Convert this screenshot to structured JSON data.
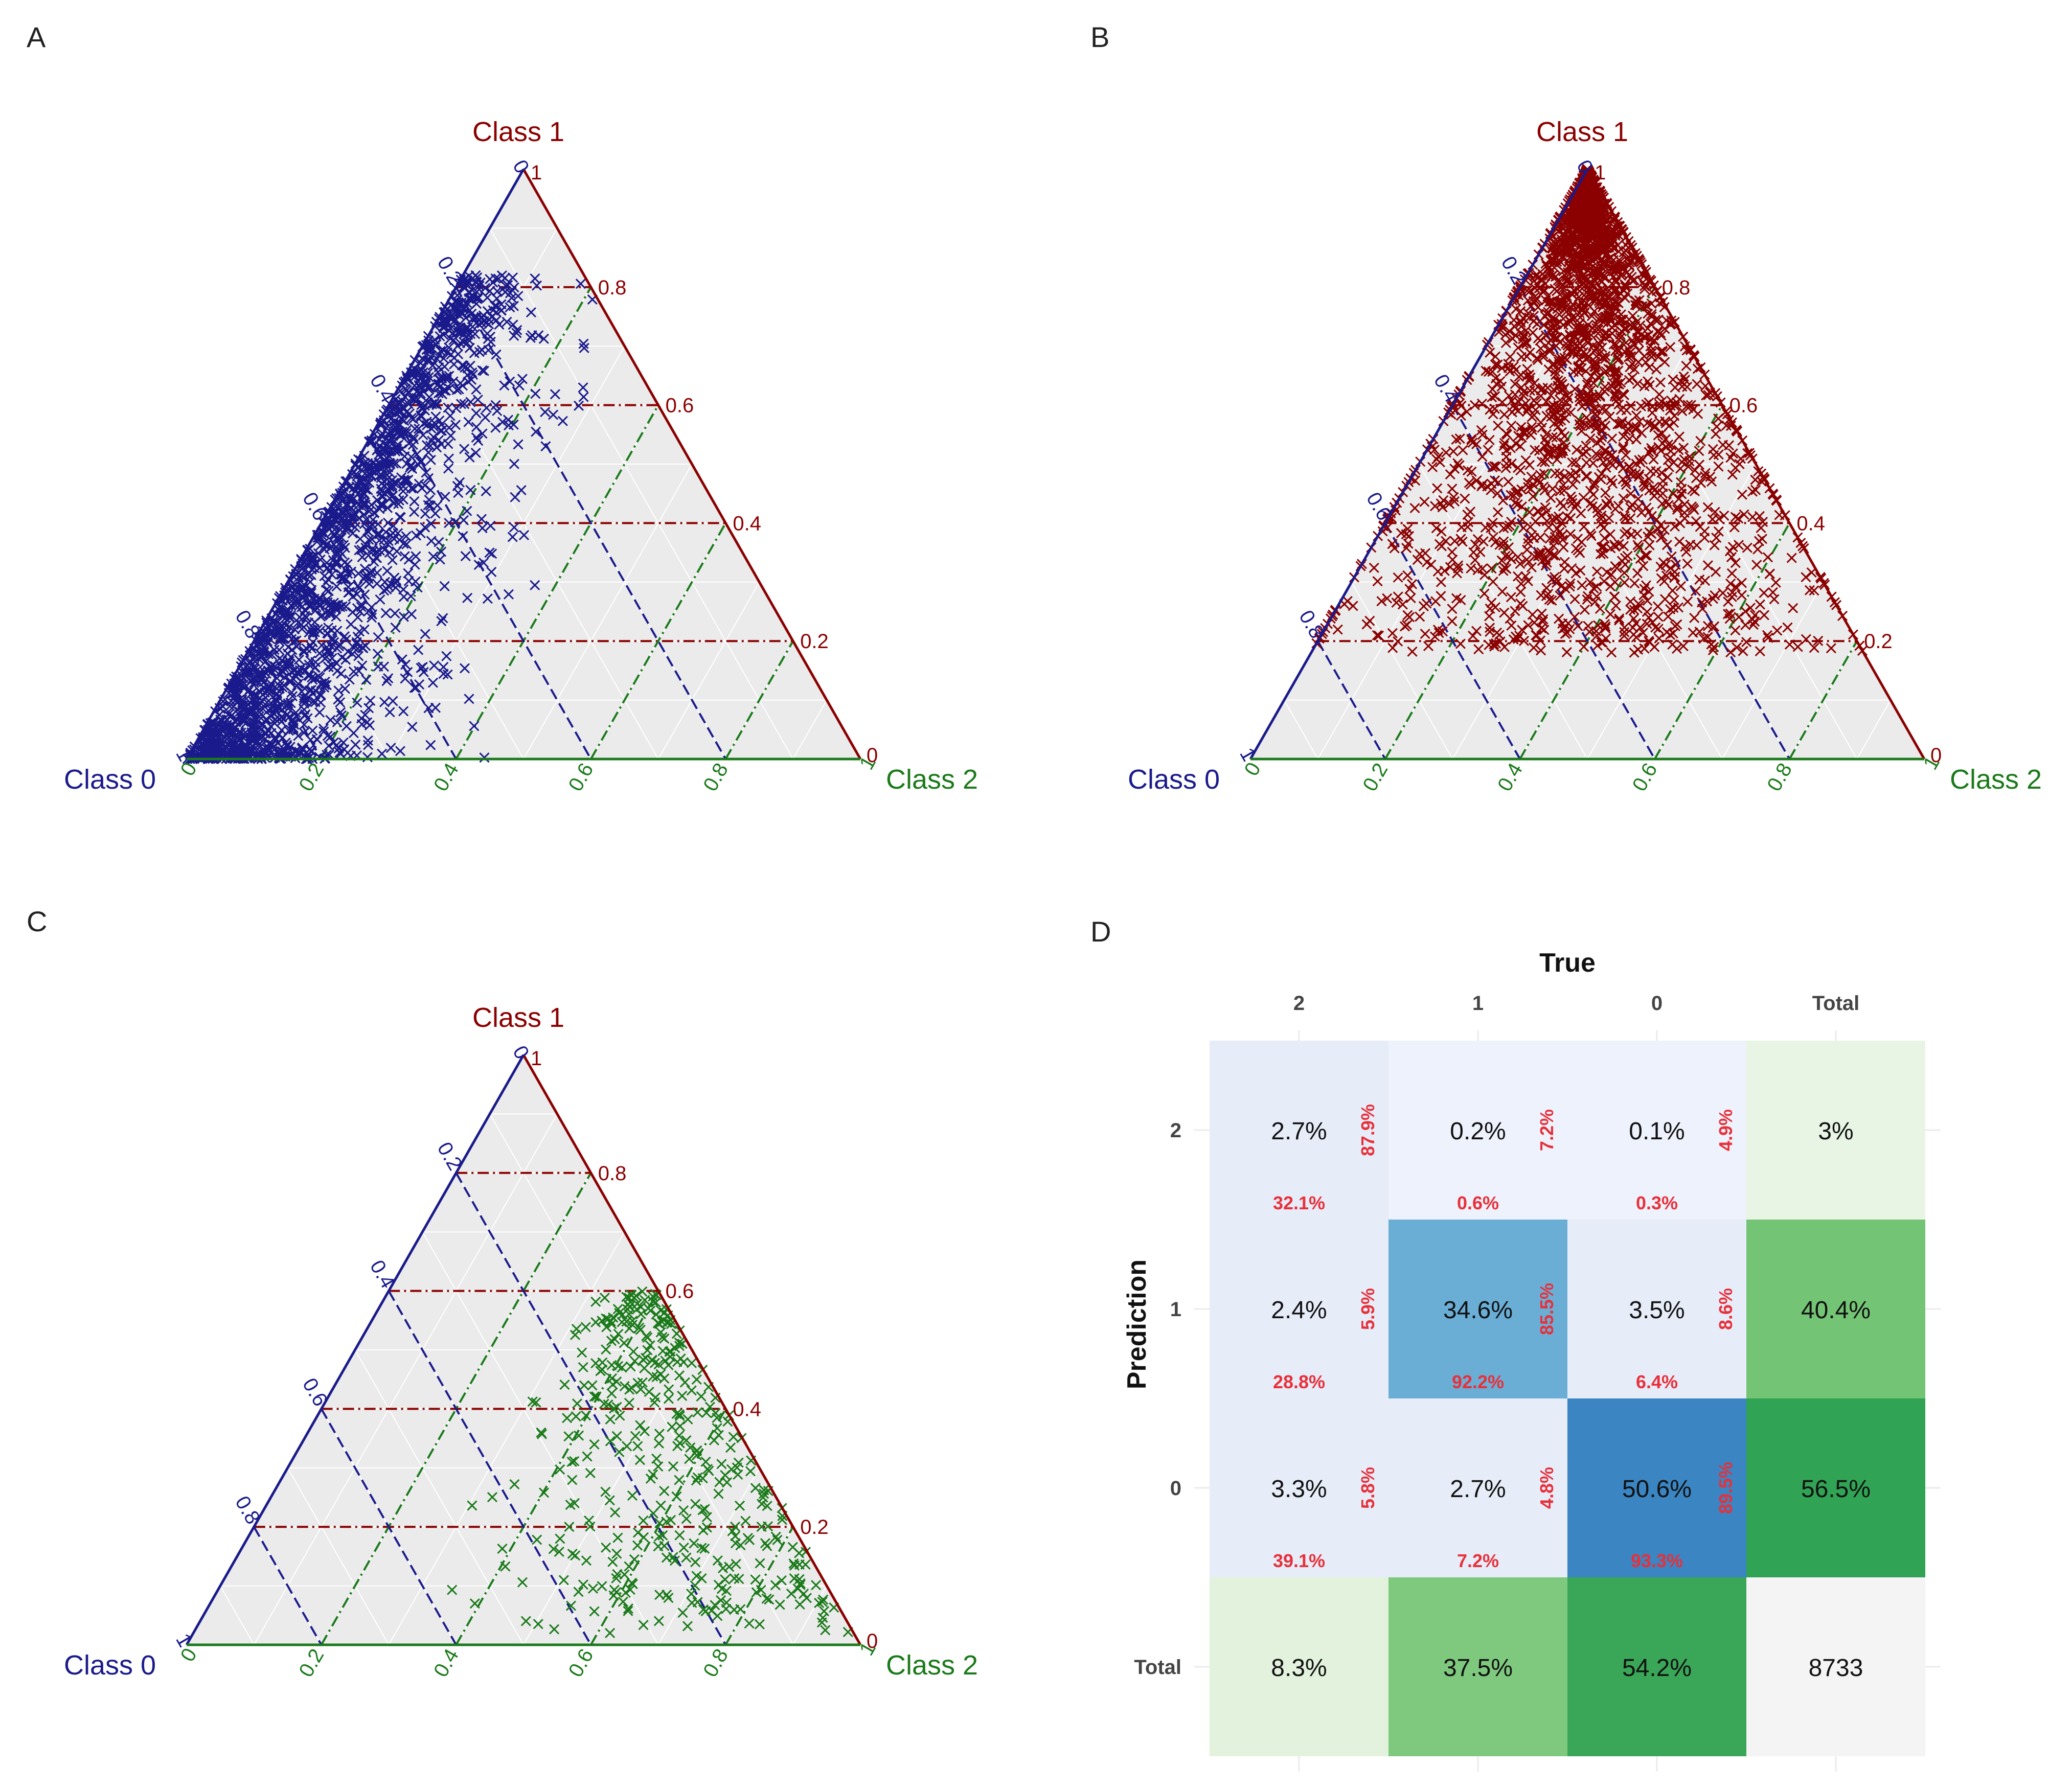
{
  "panels": {
    "a": {
      "letter": "A"
    },
    "b": {
      "letter": "B"
    },
    "c": {
      "letter": "C"
    },
    "d": {
      "letter": "D"
    }
  },
  "colors": {
    "class0": "#1a1a8c",
    "class1": "#8b0000",
    "class2": "#1a7a1a",
    "triangle_bg": "#ebebeb",
    "grid": "#ffffff",
    "cm_pct": "#e8303a",
    "cm_text": "#111111"
  },
  "ternary_common": {
    "class0_label": "Class 0",
    "class1_label": "Class 1",
    "class2_label": "Class 2",
    "ticks": [
      "0",
      "0.2",
      "0.4",
      "0.6",
      "0.8",
      "1"
    ],
    "corner_class1_top": "1",
    "corner_class2_right": "0",
    "corner_class0_left": "1"
  },
  "chart_data": [
    {
      "type": "scatter",
      "name": "A",
      "kind": "ternary",
      "marker": "x",
      "color": "#1a1a8c",
      "axes": [
        "Class 0",
        "Class 1",
        "Class 2"
      ],
      "points_desc": "predictions for true class 0; concentrated toward Class 0 vertex",
      "sample_points": [
        [
          0.9,
          0.05,
          0.05
        ],
        [
          0.8,
          0.15,
          0.05
        ],
        [
          0.7,
          0.25,
          0.05
        ],
        [
          0.6,
          0.35,
          0.05
        ],
        [
          0.5,
          0.45,
          0.05
        ],
        [
          0.4,
          0.55,
          0.05
        ],
        [
          0.3,
          0.65,
          0.05
        ],
        [
          0.2,
          0.78,
          0.02
        ],
        [
          0.75,
          0.1,
          0.15
        ],
        [
          0.65,
          0.2,
          0.15
        ],
        [
          0.55,
          0.3,
          0.15
        ],
        [
          0.45,
          0.4,
          0.15
        ],
        [
          0.35,
          0.5,
          0.15
        ],
        [
          0.6,
          0.1,
          0.3
        ],
        [
          0.5,
          0.2,
          0.3
        ],
        [
          0.85,
          0.02,
          0.13
        ],
        [
          0.7,
          0.02,
          0.28
        ],
        [
          0.55,
          0.05,
          0.4
        ]
      ],
      "guide_lines": {
        "class1": [
          0.2,
          0.4,
          0.6,
          0.8
        ],
        "class2": [
          0.2,
          0.4,
          0.6,
          0.8
        ],
        "class0": [
          0.2,
          0.4,
          0.6,
          0.8
        ]
      }
    },
    {
      "type": "scatter",
      "name": "B",
      "kind": "ternary",
      "marker": "x",
      "color": "#8b0000",
      "axes": [
        "Class 0",
        "Class 1",
        "Class 2"
      ],
      "points_desc": "predictions for true class 1; concentrated toward Class 1 vertex",
      "sample_points": [
        [
          0.02,
          0.95,
          0.03
        ],
        [
          0.05,
          0.9,
          0.05
        ],
        [
          0.1,
          0.85,
          0.05
        ],
        [
          0.05,
          0.8,
          0.15
        ],
        [
          0.15,
          0.75,
          0.1
        ],
        [
          0.1,
          0.7,
          0.2
        ],
        [
          0.2,
          0.65,
          0.15
        ],
        [
          0.25,
          0.6,
          0.15
        ],
        [
          0.3,
          0.55,
          0.15
        ],
        [
          0.15,
          0.55,
          0.3
        ],
        [
          0.35,
          0.45,
          0.2
        ],
        [
          0.4,
          0.4,
          0.2
        ],
        [
          0.5,
          0.3,
          0.2
        ],
        [
          0.6,
          0.25,
          0.15
        ],
        [
          0.7,
          0.2,
          0.1
        ],
        [
          0.3,
          0.3,
          0.4
        ],
        [
          0.2,
          0.35,
          0.45
        ],
        [
          0.1,
          0.5,
          0.4
        ]
      ],
      "guide_lines": {
        "class1": [
          0.2,
          0.4,
          0.6,
          0.8
        ],
        "class2": [
          0.2,
          0.4,
          0.6,
          0.8
        ],
        "class0": [
          0.2,
          0.4,
          0.6,
          0.8
        ]
      }
    },
    {
      "type": "scatter",
      "name": "C",
      "kind": "ternary",
      "marker": "x",
      "color": "#1a7a1a",
      "axes": [
        "Class 0",
        "Class 1",
        "Class 2"
      ],
      "points_desc": "predictions for true class 2; concentrated toward Class 2 side",
      "sample_points": [
        [
          0.05,
          0.6,
          0.35
        ],
        [
          0.05,
          0.55,
          0.4
        ],
        [
          0.1,
          0.5,
          0.4
        ],
        [
          0.05,
          0.45,
          0.5
        ],
        [
          0.15,
          0.4,
          0.45
        ],
        [
          0.1,
          0.35,
          0.55
        ],
        [
          0.2,
          0.3,
          0.5
        ],
        [
          0.05,
          0.3,
          0.65
        ],
        [
          0.25,
          0.25,
          0.5
        ],
        [
          0.15,
          0.2,
          0.65
        ],
        [
          0.3,
          0.15,
          0.55
        ],
        [
          0.05,
          0.15,
          0.8
        ],
        [
          0.35,
          0.1,
          0.55
        ],
        [
          0.2,
          0.1,
          0.7
        ],
        [
          0.4,
          0.05,
          0.55
        ],
        [
          0.25,
          0.05,
          0.7
        ],
        [
          0.1,
          0.05,
          0.85
        ],
        [
          0.5,
          0.08,
          0.42
        ]
      ],
      "guide_lines": {
        "class1": [
          0.2,
          0.4,
          0.6,
          0.8
        ],
        "class2": [
          0.2,
          0.4,
          0.6,
          0.8
        ],
        "class0": [
          0.2,
          0.4,
          0.6,
          0.8
        ]
      }
    },
    {
      "type": "heatmap",
      "name": "D",
      "title": "True",
      "xlabel": "True",
      "ylabel": "Prediction",
      "columns": [
        "2",
        "1",
        "0",
        "Total"
      ],
      "rows": [
        "2",
        "1",
        "0",
        "Total"
      ],
      "cells": [
        [
          {
            "v": "2.7%",
            "r": "87.9%",
            "b": "32.1%",
            "fill": "#e6edf9"
          },
          {
            "v": "0.2%",
            "r": "7.2%",
            "b": "0.6%",
            "fill": "#eef2fc"
          },
          {
            "v": "0.1%",
            "r": "4.9%",
            "b": "0.3%",
            "fill": "#eef2fc"
          },
          {
            "v": "3%",
            "fill": "#e8f5e4"
          }
        ],
        [
          {
            "v": "2.4%",
            "r": "5.9%",
            "b": "28.8%",
            "fill": "#e6edf9"
          },
          {
            "v": "34.6%",
            "r": "85.5%",
            "b": "92.2%",
            "fill": "#6aaed6"
          },
          {
            "v": "3.5%",
            "r": "8.6%",
            "b": "6.4%",
            "fill": "#e6edf9"
          },
          {
            "v": "40.4%",
            "fill": "#74c476"
          }
        ],
        [
          {
            "v": "3.3%",
            "r": "5.8%",
            "b": "39.1%",
            "fill": "#e6edf9"
          },
          {
            "v": "2.7%",
            "r": "4.8%",
            "b": "7.2%",
            "fill": "#e6edf9"
          },
          {
            "v": "50.6%",
            "r": "89.5%",
            "b": "93.3%",
            "fill": "#3a85c2"
          },
          {
            "v": "56.5%",
            "fill": "#31a354"
          }
        ],
        [
          {
            "v": "8.3%",
            "fill": "#e2f2dc"
          },
          {
            "v": "37.5%",
            "fill": "#7fc97f"
          },
          {
            "v": "54.2%",
            "fill": "#3aa657"
          },
          {
            "v": "8733",
            "fill": "#f4f4f4"
          }
        ]
      ]
    }
  ]
}
